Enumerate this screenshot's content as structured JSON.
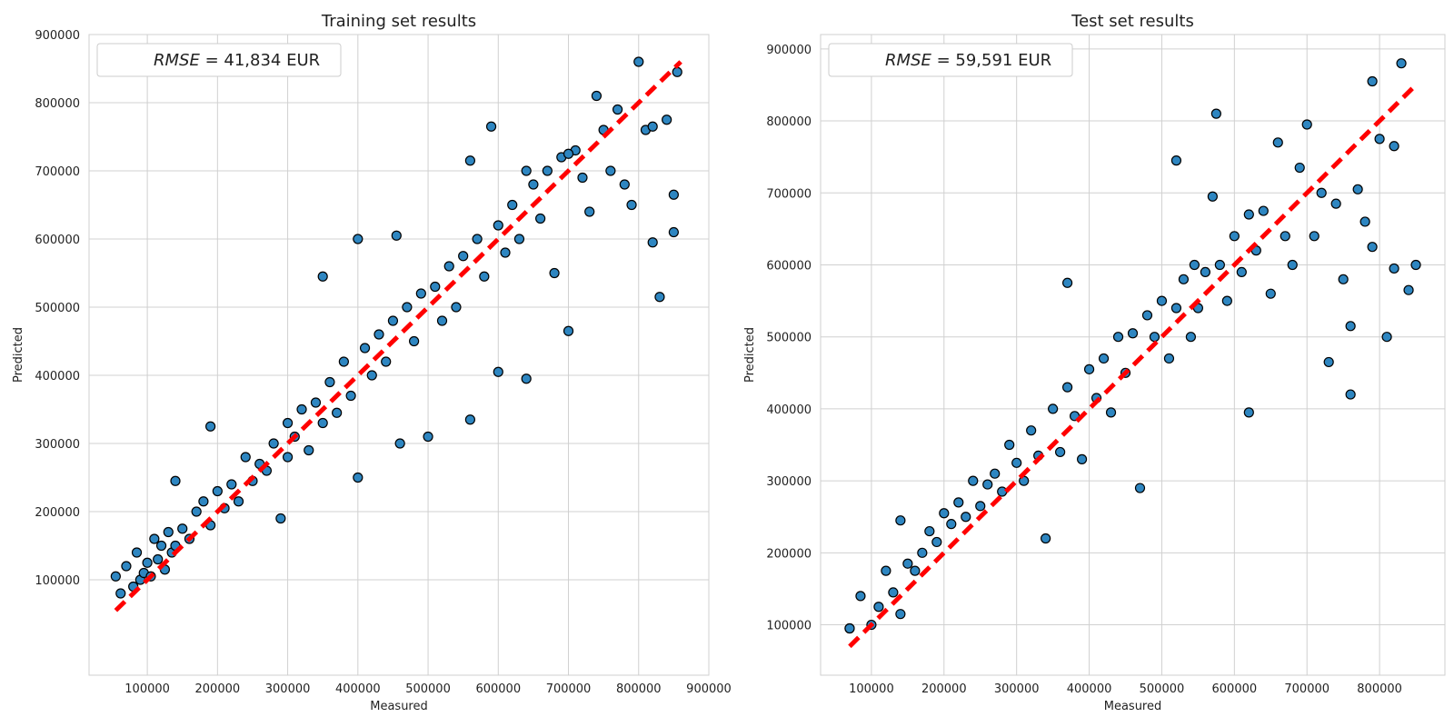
{
  "chart_data": [
    {
      "type": "scatter",
      "title": "Training set results",
      "xlabel": "Measured",
      "ylabel": "Predicted",
      "xlim": [
        17000,
        900000
      ],
      "ylim": [
        -40000,
        900000
      ],
      "xticks": [
        100000,
        200000,
        300000,
        400000,
        500000,
        600000,
        700000,
        800000,
        900000
      ],
      "yticks": [
        100000,
        200000,
        300000,
        400000,
        500000,
        600000,
        700000,
        800000,
        900000
      ],
      "grid": true,
      "legend_position": "upper-left",
      "legend": {
        "metric": "RMSE",
        "value": "41,834",
        "unit": "EUR"
      },
      "reference_line": {
        "label": "",
        "from": [
          55000,
          55000
        ],
        "to": [
          860000,
          860000
        ],
        "color": "#ff0000"
      },
      "point_color": "#2e86c1",
      "point_edge": "#000000",
      "x": [
        55000,
        62000,
        70000,
        80000,
        85000,
        90000,
        95000,
        100000,
        105000,
        110000,
        115000,
        120000,
        125000,
        130000,
        135000,
        140000,
        140000,
        150000,
        160000,
        170000,
        180000,
        190000,
        200000,
        210000,
        220000,
        230000,
        240000,
        250000,
        260000,
        270000,
        280000,
        290000,
        300000,
        300000,
        310000,
        320000,
        330000,
        340000,
        350000,
        360000,
        370000,
        380000,
        390000,
        400000,
        410000,
        420000,
        430000,
        440000,
        450000,
        460000,
        470000,
        480000,
        490000,
        500000,
        510000,
        520000,
        530000,
        540000,
        550000,
        560000,
        570000,
        580000,
        590000,
        600000,
        610000,
        620000,
        630000,
        640000,
        650000,
        660000,
        670000,
        680000,
        690000,
        700000,
        710000,
        720000,
        730000,
        740000,
        750000,
        760000,
        770000,
        780000,
        790000,
        800000,
        810000,
        820000,
        830000,
        840000,
        850000,
        855000,
        190000,
        350000,
        400000,
        455000,
        560000,
        600000,
        640000,
        820000,
        850000,
        700000
      ],
      "y": [
        105000,
        80000,
        120000,
        90000,
        140000,
        100000,
        110000,
        125000,
        105000,
        160000,
        130000,
        150000,
        115000,
        170000,
        140000,
        245000,
        150000,
        175000,
        160000,
        200000,
        215000,
        180000,
        230000,
        205000,
        240000,
        215000,
        280000,
        245000,
        270000,
        260000,
        300000,
        190000,
        330000,
        280000,
        310000,
        350000,
        290000,
        360000,
        330000,
        390000,
        345000,
        420000,
        370000,
        250000,
        440000,
        400000,
        460000,
        420000,
        480000,
        300000,
        500000,
        450000,
        520000,
        310000,
        530000,
        480000,
        560000,
        500000,
        575000,
        335000,
        600000,
        545000,
        765000,
        620000,
        580000,
        650000,
        600000,
        395000,
        680000,
        630000,
        700000,
        550000,
        720000,
        465000,
        730000,
        690000,
        640000,
        810000,
        760000,
        700000,
        790000,
        680000,
        650000,
        860000,
        760000,
        595000,
        515000,
        775000,
        610000,
        845000,
        325000,
        545000,
        600000,
        605000,
        715000,
        405000,
        700000,
        765000,
        665000,
        725000
      ]
    },
    {
      "type": "scatter",
      "title": "Test set results",
      "xlabel": "Measured",
      "ylabel": "Predicted",
      "xlim": [
        30000,
        890000
      ],
      "ylim": [
        30000,
        920000
      ],
      "xticks": [
        100000,
        200000,
        300000,
        400000,
        500000,
        600000,
        700000,
        800000
      ],
      "yticks": [
        100000,
        200000,
        300000,
        400000,
        500000,
        600000,
        700000,
        800000,
        900000
      ],
      "grid": true,
      "legend_position": "upper-left",
      "legend": {
        "metric": "RMSE",
        "value": "59,591",
        "unit": "EUR"
      },
      "reference_line": {
        "label": "",
        "from": [
          70000,
          70000
        ],
        "to": [
          850000,
          850000
        ],
        "color": "#ff0000"
      },
      "point_color": "#2e86c1",
      "point_edge": "#000000",
      "x": [
        70000,
        85000,
        100000,
        110000,
        120000,
        130000,
        140000,
        150000,
        160000,
        170000,
        180000,
        190000,
        200000,
        210000,
        220000,
        230000,
        240000,
        250000,
        260000,
        270000,
        280000,
        290000,
        300000,
        310000,
        320000,
        330000,
        340000,
        350000,
        360000,
        370000,
        380000,
        390000,
        400000,
        410000,
        420000,
        430000,
        440000,
        450000,
        460000,
        470000,
        480000,
        490000,
        500000,
        510000,
        520000,
        530000,
        540000,
        550000,
        560000,
        570000,
        580000,
        590000,
        600000,
        610000,
        620000,
        630000,
        640000,
        650000,
        660000,
        670000,
        680000,
        690000,
        700000,
        710000,
        720000,
        730000,
        740000,
        750000,
        760000,
        770000,
        780000,
        790000,
        800000,
        810000,
        820000,
        830000,
        840000,
        850000,
        70000,
        140000,
        370000,
        520000,
        575000,
        620000,
        760000,
        790000,
        820000,
        545000
      ],
      "y": [
        95000,
        140000,
        100000,
        125000,
        175000,
        145000,
        245000,
        185000,
        175000,
        200000,
        230000,
        215000,
        255000,
        240000,
        270000,
        250000,
        300000,
        265000,
        295000,
        310000,
        285000,
        350000,
        325000,
        300000,
        370000,
        335000,
        220000,
        400000,
        340000,
        430000,
        390000,
        330000,
        455000,
        415000,
        470000,
        395000,
        500000,
        450000,
        505000,
        290000,
        530000,
        500000,
        550000,
        470000,
        745000,
        580000,
        500000,
        540000,
        590000,
        695000,
        600000,
        550000,
        640000,
        590000,
        670000,
        620000,
        675000,
        560000,
        770000,
        640000,
        600000,
        735000,
        795000,
        640000,
        700000,
        465000,
        685000,
        580000,
        420000,
        705000,
        660000,
        855000,
        775000,
        500000,
        595000,
        880000,
        565000,
        600000,
        95000,
        115000,
        575000,
        540000,
        810000,
        395000,
        515000,
        625000,
        765000,
        600000
      ]
    }
  ]
}
